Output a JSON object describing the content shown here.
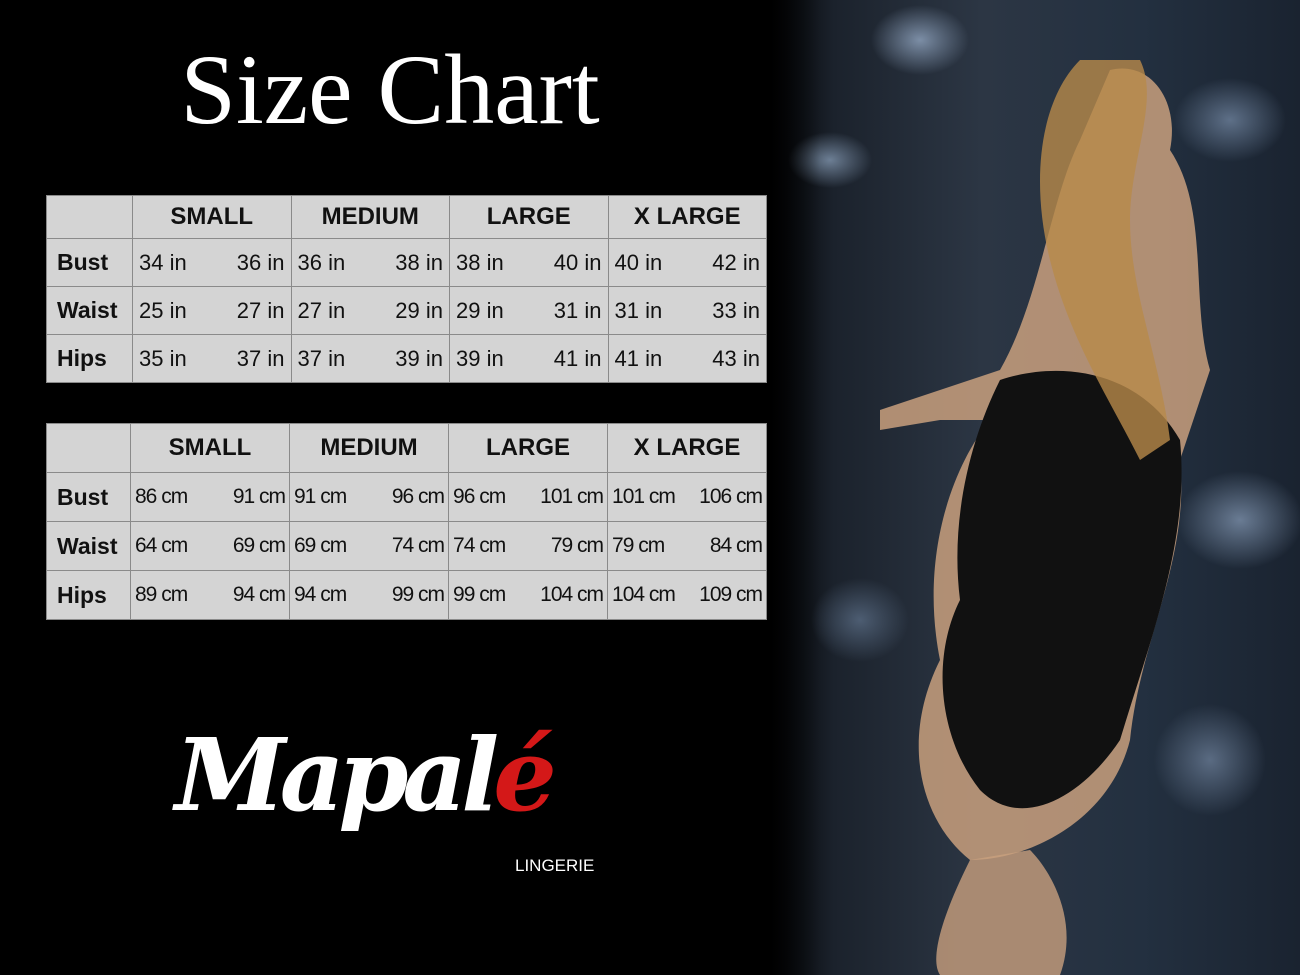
{
  "title": "Size Chart",
  "sizes": [
    "SMALL",
    "MEDIUM",
    "LARGE",
    "X LARGE"
  ],
  "inches_table": {
    "rows": [
      {
        "label": "Bust",
        "values": [
          "34 in",
          "36 in",
          "36 in",
          "38 in",
          "38 in",
          "40 in",
          "40 in",
          "42 in"
        ]
      },
      {
        "label": "Waist",
        "values": [
          "25 in",
          "27 in",
          "27 in",
          "29 in",
          "29 in",
          "31 in",
          "31 in",
          "33 in"
        ]
      },
      {
        "label": "Hips",
        "values": [
          "35 in",
          "37 in",
          "37 in",
          "39 in",
          "39 in",
          "41 in",
          "41 in",
          "43 in"
        ]
      }
    ]
  },
  "cm_table": {
    "rows": [
      {
        "label": "Bust",
        "values": [
          "86 cm",
          "91 cm",
          "91 cm",
          "96 cm",
          "96 cm",
          "101 cm",
          "101 cm",
          "106 cm"
        ]
      },
      {
        "label": "Waist",
        "values": [
          "64 cm",
          "69 cm",
          "69 cm",
          "74 cm",
          "74 cm",
          "79  cm",
          "79 cm",
          "84 cm"
        ]
      },
      {
        "label": "Hips",
        "values": [
          "89 cm",
          "94 cm",
          "94 cm",
          "99 cm",
          "99 cm",
          "104 cm",
          "104 cm",
          "109 cm"
        ]
      }
    ]
  },
  "brand": {
    "name_main": "Mapal",
    "name_accent": "é",
    "tagline": "LINGERIE",
    "accent_color": "#d41818"
  }
}
